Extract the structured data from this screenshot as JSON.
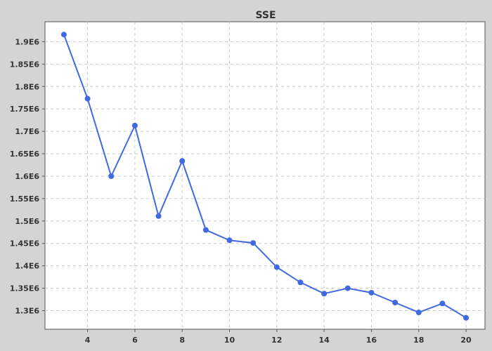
{
  "chart_data": {
    "type": "line",
    "title": "SSE",
    "xlabel": "",
    "ylabel": "",
    "xlim": [
      2.2,
      20.8
    ],
    "ylim": [
      1.2585,
      1.9445
    ],
    "x_ticks": [
      4,
      6,
      8,
      10,
      12,
      14,
      16,
      18,
      20
    ],
    "x_tick_labels": [
      "4",
      "6",
      "8",
      "10",
      "12",
      "14",
      "16",
      "18",
      "20"
    ],
    "y_ticks": [
      1300000,
      1350000,
      1400000,
      1450000,
      1500000,
      1550000,
      1600000,
      1650000,
      1700000,
      1750000,
      1800000,
      1850000,
      1900000
    ],
    "y_tick_labels": [
      "1.3E6",
      "1.35E6",
      "1.4E6",
      "1.45E6",
      "1.5E6",
      "1.55E6",
      "1.6E6",
      "1.65E6",
      "1.7E6",
      "1.75E6",
      "1.8E6",
      "1.85E6",
      "1.9E6"
    ],
    "grid": true,
    "legend": "none",
    "series": [
      {
        "color": "#4169e1",
        "x": [
          3,
          4,
          5,
          6,
          7,
          8,
          9,
          10,
          11,
          12,
          13,
          14,
          15,
          16,
          17,
          18,
          19,
          20
        ],
        "y": [
          1916000,
          1773000,
          1600000,
          1713000,
          1511000,
          1634000,
          1480000,
          1457000,
          1451000,
          1397000,
          1363000,
          1338000,
          1350000,
          1340000,
          1318000,
          1296000,
          1316000,
          1284000
        ]
      }
    ]
  },
  "colors": {
    "page_background": "#d4d4d4",
    "plot_background": "#ffffff",
    "series": "#4169e1",
    "text": "#333333"
  }
}
